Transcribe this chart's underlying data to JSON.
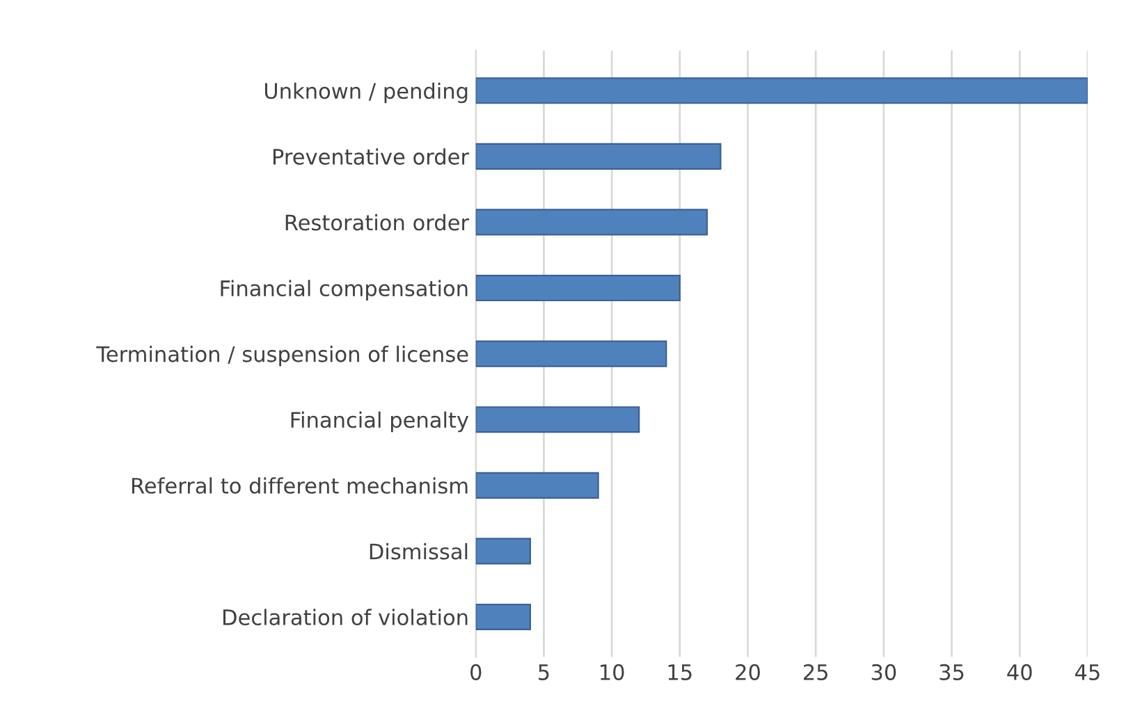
{
  "chart_data": {
    "type": "bar",
    "orientation": "horizontal",
    "categories": [
      "Unknown / pending",
      "Preventative order",
      "Restoration order",
      "Financial compensation",
      "Termination / suspension of license",
      "Financial penalty",
      "Referral to different mechanism",
      "Dismissal",
      "Declaration of violation"
    ],
    "values": [
      45,
      18,
      17,
      15,
      14,
      12,
      9,
      4,
      4
    ],
    "color": "#4f81bd",
    "xlim": [
      0,
      45
    ],
    "xticks": [
      0,
      5,
      10,
      15,
      20,
      25,
      30,
      35,
      40,
      45
    ],
    "grid": "x"
  }
}
